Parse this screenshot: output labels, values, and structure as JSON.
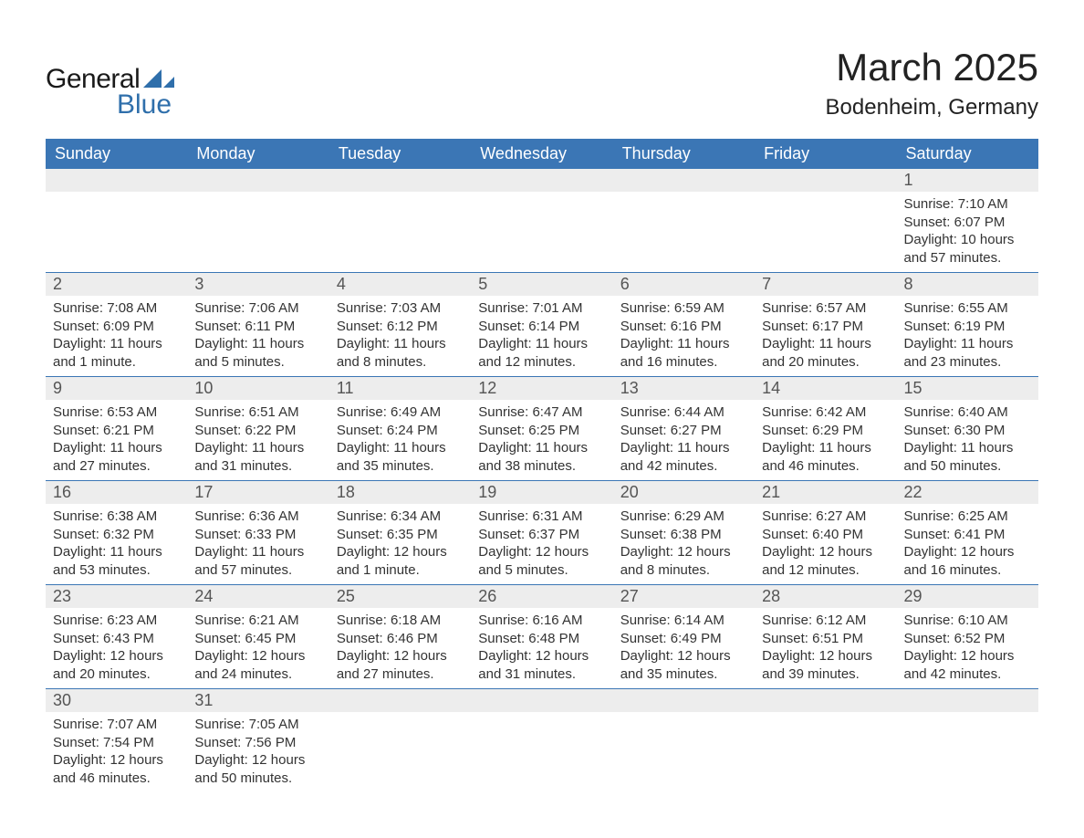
{
  "logo": {
    "word1": "General",
    "word2": "Blue",
    "word1_color": "#1a1a1a",
    "word2_color": "#2f6fab",
    "shape_color": "#2f6fab"
  },
  "title": "March 2025",
  "title_color": "#222222",
  "title_fontsize": 42,
  "location": "Bodenheim, Germany",
  "location_color": "#222222",
  "location_fontsize": 24,
  "header_bg": "#3b76b5",
  "header_fg": "#ffffff",
  "daynum_bg": "#ededed",
  "daynum_fg": "#555555",
  "row_border_color": "#3b76b5",
  "body_text_color": "#333333",
  "days_of_week": [
    "Sunday",
    "Monday",
    "Tuesday",
    "Wednesday",
    "Thursday",
    "Friday",
    "Saturday"
  ],
  "weeks": [
    {
      "days": [
        {
          "num": "",
          "sunrise": "",
          "sunset": "",
          "daylight1": "",
          "daylight2": ""
        },
        {
          "num": "",
          "sunrise": "",
          "sunset": "",
          "daylight1": "",
          "daylight2": ""
        },
        {
          "num": "",
          "sunrise": "",
          "sunset": "",
          "daylight1": "",
          "daylight2": ""
        },
        {
          "num": "",
          "sunrise": "",
          "sunset": "",
          "daylight1": "",
          "daylight2": ""
        },
        {
          "num": "",
          "sunrise": "",
          "sunset": "",
          "daylight1": "",
          "daylight2": ""
        },
        {
          "num": "",
          "sunrise": "",
          "sunset": "",
          "daylight1": "",
          "daylight2": ""
        },
        {
          "num": "1",
          "sunrise": "Sunrise: 7:10 AM",
          "sunset": "Sunset: 6:07 PM",
          "daylight1": "Daylight: 10 hours",
          "daylight2": "and 57 minutes."
        }
      ]
    },
    {
      "days": [
        {
          "num": "2",
          "sunrise": "Sunrise: 7:08 AM",
          "sunset": "Sunset: 6:09 PM",
          "daylight1": "Daylight: 11 hours",
          "daylight2": "and 1 minute."
        },
        {
          "num": "3",
          "sunrise": "Sunrise: 7:06 AM",
          "sunset": "Sunset: 6:11 PM",
          "daylight1": "Daylight: 11 hours",
          "daylight2": "and 5 minutes."
        },
        {
          "num": "4",
          "sunrise": "Sunrise: 7:03 AM",
          "sunset": "Sunset: 6:12 PM",
          "daylight1": "Daylight: 11 hours",
          "daylight2": "and 8 minutes."
        },
        {
          "num": "5",
          "sunrise": "Sunrise: 7:01 AM",
          "sunset": "Sunset: 6:14 PM",
          "daylight1": "Daylight: 11 hours",
          "daylight2": "and 12 minutes."
        },
        {
          "num": "6",
          "sunrise": "Sunrise: 6:59 AM",
          "sunset": "Sunset: 6:16 PM",
          "daylight1": "Daylight: 11 hours",
          "daylight2": "and 16 minutes."
        },
        {
          "num": "7",
          "sunrise": "Sunrise: 6:57 AM",
          "sunset": "Sunset: 6:17 PM",
          "daylight1": "Daylight: 11 hours",
          "daylight2": "and 20 minutes."
        },
        {
          "num": "8",
          "sunrise": "Sunrise: 6:55 AM",
          "sunset": "Sunset: 6:19 PM",
          "daylight1": "Daylight: 11 hours",
          "daylight2": "and 23 minutes."
        }
      ]
    },
    {
      "days": [
        {
          "num": "9",
          "sunrise": "Sunrise: 6:53 AM",
          "sunset": "Sunset: 6:21 PM",
          "daylight1": "Daylight: 11 hours",
          "daylight2": "and 27 minutes."
        },
        {
          "num": "10",
          "sunrise": "Sunrise: 6:51 AM",
          "sunset": "Sunset: 6:22 PM",
          "daylight1": "Daylight: 11 hours",
          "daylight2": "and 31 minutes."
        },
        {
          "num": "11",
          "sunrise": "Sunrise: 6:49 AM",
          "sunset": "Sunset: 6:24 PM",
          "daylight1": "Daylight: 11 hours",
          "daylight2": "and 35 minutes."
        },
        {
          "num": "12",
          "sunrise": "Sunrise: 6:47 AM",
          "sunset": "Sunset: 6:25 PM",
          "daylight1": "Daylight: 11 hours",
          "daylight2": "and 38 minutes."
        },
        {
          "num": "13",
          "sunrise": "Sunrise: 6:44 AM",
          "sunset": "Sunset: 6:27 PM",
          "daylight1": "Daylight: 11 hours",
          "daylight2": "and 42 minutes."
        },
        {
          "num": "14",
          "sunrise": "Sunrise: 6:42 AM",
          "sunset": "Sunset: 6:29 PM",
          "daylight1": "Daylight: 11 hours",
          "daylight2": "and 46 minutes."
        },
        {
          "num": "15",
          "sunrise": "Sunrise: 6:40 AM",
          "sunset": "Sunset: 6:30 PM",
          "daylight1": "Daylight: 11 hours",
          "daylight2": "and 50 minutes."
        }
      ]
    },
    {
      "days": [
        {
          "num": "16",
          "sunrise": "Sunrise: 6:38 AM",
          "sunset": "Sunset: 6:32 PM",
          "daylight1": "Daylight: 11 hours",
          "daylight2": "and 53 minutes."
        },
        {
          "num": "17",
          "sunrise": "Sunrise: 6:36 AM",
          "sunset": "Sunset: 6:33 PM",
          "daylight1": "Daylight: 11 hours",
          "daylight2": "and 57 minutes."
        },
        {
          "num": "18",
          "sunrise": "Sunrise: 6:34 AM",
          "sunset": "Sunset: 6:35 PM",
          "daylight1": "Daylight: 12 hours",
          "daylight2": "and 1 minute."
        },
        {
          "num": "19",
          "sunrise": "Sunrise: 6:31 AM",
          "sunset": "Sunset: 6:37 PM",
          "daylight1": "Daylight: 12 hours",
          "daylight2": "and 5 minutes."
        },
        {
          "num": "20",
          "sunrise": "Sunrise: 6:29 AM",
          "sunset": "Sunset: 6:38 PM",
          "daylight1": "Daylight: 12 hours",
          "daylight2": "and 8 minutes."
        },
        {
          "num": "21",
          "sunrise": "Sunrise: 6:27 AM",
          "sunset": "Sunset: 6:40 PM",
          "daylight1": "Daylight: 12 hours",
          "daylight2": "and 12 minutes."
        },
        {
          "num": "22",
          "sunrise": "Sunrise: 6:25 AM",
          "sunset": "Sunset: 6:41 PM",
          "daylight1": "Daylight: 12 hours",
          "daylight2": "and 16 minutes."
        }
      ]
    },
    {
      "days": [
        {
          "num": "23",
          "sunrise": "Sunrise: 6:23 AM",
          "sunset": "Sunset: 6:43 PM",
          "daylight1": "Daylight: 12 hours",
          "daylight2": "and 20 minutes."
        },
        {
          "num": "24",
          "sunrise": "Sunrise: 6:21 AM",
          "sunset": "Sunset: 6:45 PM",
          "daylight1": "Daylight: 12 hours",
          "daylight2": "and 24 minutes."
        },
        {
          "num": "25",
          "sunrise": "Sunrise: 6:18 AM",
          "sunset": "Sunset: 6:46 PM",
          "daylight1": "Daylight: 12 hours",
          "daylight2": "and 27 minutes."
        },
        {
          "num": "26",
          "sunrise": "Sunrise: 6:16 AM",
          "sunset": "Sunset: 6:48 PM",
          "daylight1": "Daylight: 12 hours",
          "daylight2": "and 31 minutes."
        },
        {
          "num": "27",
          "sunrise": "Sunrise: 6:14 AM",
          "sunset": "Sunset: 6:49 PM",
          "daylight1": "Daylight: 12 hours",
          "daylight2": "and 35 minutes."
        },
        {
          "num": "28",
          "sunrise": "Sunrise: 6:12 AM",
          "sunset": "Sunset: 6:51 PM",
          "daylight1": "Daylight: 12 hours",
          "daylight2": "and 39 minutes."
        },
        {
          "num": "29",
          "sunrise": "Sunrise: 6:10 AM",
          "sunset": "Sunset: 6:52 PM",
          "daylight1": "Daylight: 12 hours",
          "daylight2": "and 42 minutes."
        }
      ]
    },
    {
      "days": [
        {
          "num": "30",
          "sunrise": "Sunrise: 7:07 AM",
          "sunset": "Sunset: 7:54 PM",
          "daylight1": "Daylight: 12 hours",
          "daylight2": "and 46 minutes."
        },
        {
          "num": "31",
          "sunrise": "Sunrise: 7:05 AM",
          "sunset": "Sunset: 7:56 PM",
          "daylight1": "Daylight: 12 hours",
          "daylight2": "and 50 minutes."
        },
        {
          "num": "",
          "sunrise": "",
          "sunset": "",
          "daylight1": "",
          "daylight2": ""
        },
        {
          "num": "",
          "sunrise": "",
          "sunset": "",
          "daylight1": "",
          "daylight2": ""
        },
        {
          "num": "",
          "sunrise": "",
          "sunset": "",
          "daylight1": "",
          "daylight2": ""
        },
        {
          "num": "",
          "sunrise": "",
          "sunset": "",
          "daylight1": "",
          "daylight2": ""
        },
        {
          "num": "",
          "sunrise": "",
          "sunset": "",
          "daylight1": "",
          "daylight2": ""
        }
      ]
    }
  ]
}
